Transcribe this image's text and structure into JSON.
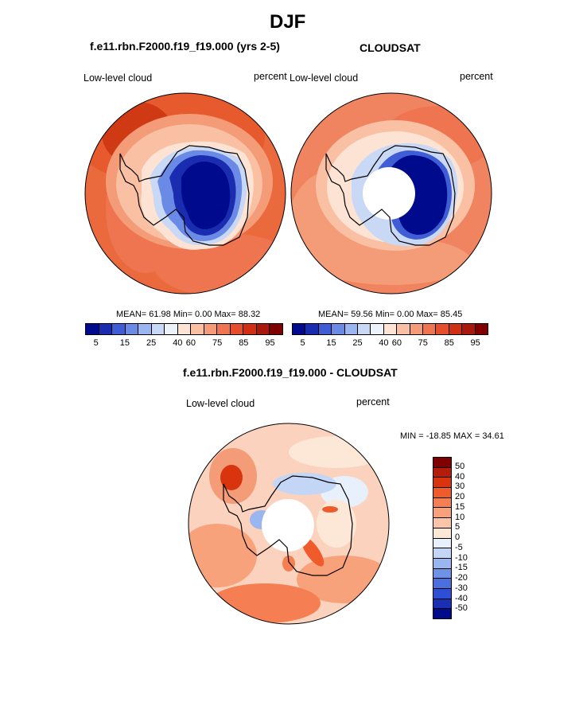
{
  "title": "DJF",
  "panels": {
    "model": {
      "subtitle": "f.e11.rbn.F2000.f19_f19.000 (yrs 2-5)",
      "left_label": "Low-level cloud",
      "right_label": "percent",
      "stats": "MEAN=  61.98  Min=   0.00  Max=  88.32"
    },
    "obs": {
      "subtitle": "CLOUDSAT",
      "left_label": "Low-level cloud",
      "right_label": "percent",
      "stats": "MEAN=  59.56  Min=   0.00  Max=  85.45"
    },
    "diff": {
      "subtitle": "f.e11.rbn.F2000.f19_f19.000 - CLOUDSAT",
      "left_label": "Low-level cloud",
      "right_label": "percent",
      "stats": "MIN = -18.85 MAX =  34.61"
    }
  },
  "colorbar_top": {
    "colors": [
      "#000a8c",
      "#1a2cb0",
      "#3f5ed6",
      "#6a8ae6",
      "#9bb5f0",
      "#c8d8f5",
      "#ecf1fa",
      "#fde3d4",
      "#f9c0a3",
      "#f49b77",
      "#ef7450",
      "#e54d2d",
      "#cf2f12",
      "#a9180a",
      "#800000"
    ],
    "ticks": [
      "5",
      "15",
      "25",
      "40",
      "60",
      "75",
      "85",
      "95"
    ]
  },
  "colorbar_diff": {
    "colors": [
      "#800000",
      "#b51c0a",
      "#d8350f",
      "#ef5b2b",
      "#f57f52",
      "#f8a27b",
      "#fbc6a8",
      "#fde8d8",
      "#e8f0fb",
      "#c4d6f5",
      "#99b6ee",
      "#6e93e6",
      "#4a70df",
      "#2d4fd6",
      "#1a30b4",
      "#000a8c"
    ],
    "ticks": [
      "50",
      "40",
      "30",
      "20",
      "15",
      "10",
      "5",
      "0",
      "-5",
      "-10",
      "-15",
      "-20",
      "-30",
      "-40",
      "-50"
    ]
  },
  "map_colors": {
    "ocean_high": "#e65a2e",
    "ocean_mid": "#f08460",
    "ocean_low": "#f7b495",
    "ice_deep": "#000a8c",
    "ice_mid": "#3f5ed6",
    "ice_light": "#9bb5f0",
    "diff_bg": "#fbd2bd",
    "diff_red": "#ef6a3e",
    "diff_blue": "#a9c2f0",
    "missing": "#ffffff"
  }
}
